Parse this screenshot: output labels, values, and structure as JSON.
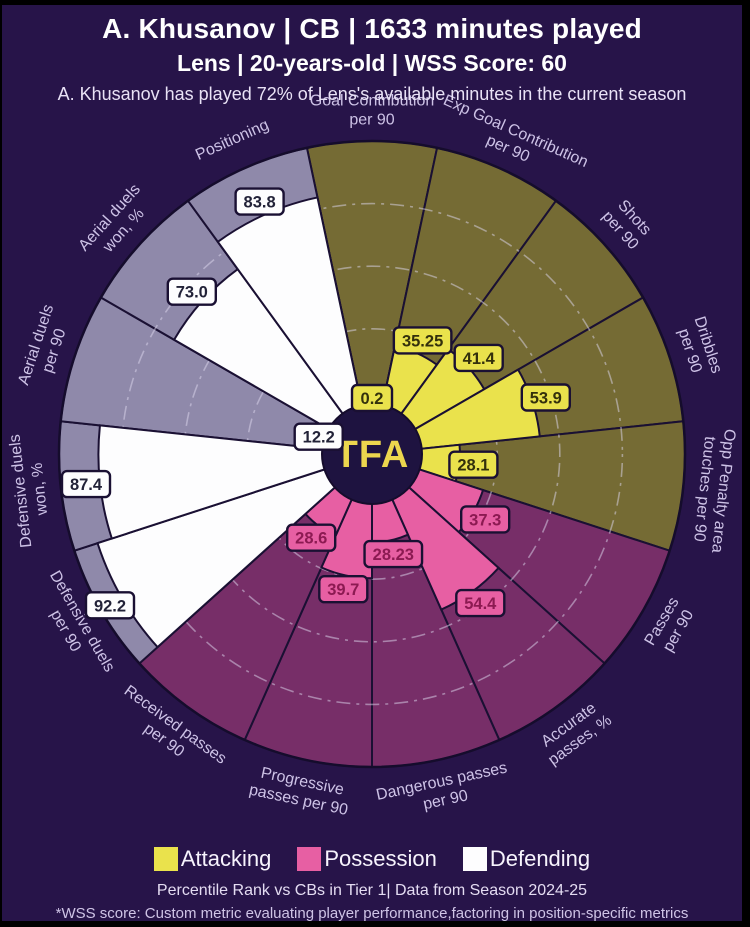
{
  "header": {
    "title": "A. Khusanov | CB | 1633 minutes played",
    "subtitle": "Lens | 20-years-old | WSS Score: 60",
    "note": "A. Khusanov has played 72% of Lens's available minutes in the current season"
  },
  "center_logo": "TFA",
  "chart_data": {
    "type": "pizza-radar",
    "unit": "percentile-rank",
    "axis_range": [
      0,
      100
    ],
    "grid": [
      20,
      40,
      60,
      80
    ],
    "colors": {
      "background": "#271449",
      "spoke_stroke": "#1a1033",
      "grid_stroke": "rgba(222,216,238,0.5)",
      "center_circle": "#1e1340",
      "logo_text": "#ecd64e",
      "axis_label_text": "#cdc2e6"
    },
    "groups": {
      "attacking": {
        "label": "Attacking",
        "fill": "#eae24c",
        "bg": "#756b34",
        "box_text": "#33300c"
      },
      "possession": {
        "label": "Possession",
        "fill": "#e75fa3",
        "bg": "#772e68",
        "box_text": "#8c1a52"
      },
      "defending": {
        "label": "Defending",
        "fill": "#fdfdfe",
        "bg": "#8f89aa",
        "box_text": "#222238"
      }
    },
    "slices": [
      {
        "lines": [
          "Goal Contribution",
          "per 90"
        ],
        "value": 0.2,
        "display": "0.2",
        "group": "attacking"
      },
      {
        "lines": [
          "Exp Goal Contribution",
          "per 90"
        ],
        "value": 35.25,
        "display": "35.25",
        "group": "attacking"
      },
      {
        "lines": [
          "Shots",
          "per 90"
        ],
        "value": 41.4,
        "display": "41.4",
        "group": "attacking"
      },
      {
        "lines": [
          "Dribbles",
          "per 90"
        ],
        "value": 53.9,
        "display": "53.9",
        "group": "attacking"
      },
      {
        "lines": [
          "Opp Penalty area",
          "touches per 90"
        ],
        "value": 28.1,
        "display": "28.1",
        "group": "attacking"
      },
      {
        "lines": [
          "Passes",
          "per 90"
        ],
        "value": 37.3,
        "display": "37.3",
        "group": "possession"
      },
      {
        "lines": [
          "Accurate",
          "passes, %"
        ],
        "value": 54.4,
        "display": "54.4",
        "group": "possession"
      },
      {
        "lines": [
          "Dangerous passes",
          "per 90"
        ],
        "value": 28.23,
        "display": "28.23",
        "group": "possession"
      },
      {
        "lines": [
          "Progressive",
          "passes per 90"
        ],
        "value": 39.7,
        "display": "39.7",
        "group": "possession"
      },
      {
        "lines": [
          "Received passes",
          "per 90"
        ],
        "value": 28.6,
        "display": "28.6",
        "group": "possession"
      },
      {
        "lines": [
          "Defensive duels",
          "per 90"
        ],
        "value": 92.2,
        "display": "92.2",
        "group": "defending"
      },
      {
        "lines": [
          "Defensive duels",
          "won, %"
        ],
        "value": 87.4,
        "display": "87.4",
        "group": "defending"
      },
      {
        "lines": [
          "Aerial duels",
          "per 90"
        ],
        "value": 12.2,
        "display": "12.2",
        "group": "defending"
      },
      {
        "lines": [
          "Aerial duels",
          "won, %"
        ],
        "value": 73.0,
        "display": "73.0",
        "group": "defending"
      },
      {
        "lines": [
          "Positioning"
        ],
        "value": 83.8,
        "display": "83.8",
        "group": "defending"
      }
    ]
  },
  "legend": [
    {
      "label": "Attacking",
      "color": "#eae24c"
    },
    {
      "label": "Possession",
      "color": "#e75fa3"
    },
    {
      "label": "Defending",
      "color": "#fdfdfe"
    }
  ],
  "footer": {
    "line1": "Percentile Rank vs CBs in Tier 1| Data from Season 2024-25",
    "line2": "*WSS score: Custom metric evaluating player performance,factoring in position-specific metrics"
  }
}
